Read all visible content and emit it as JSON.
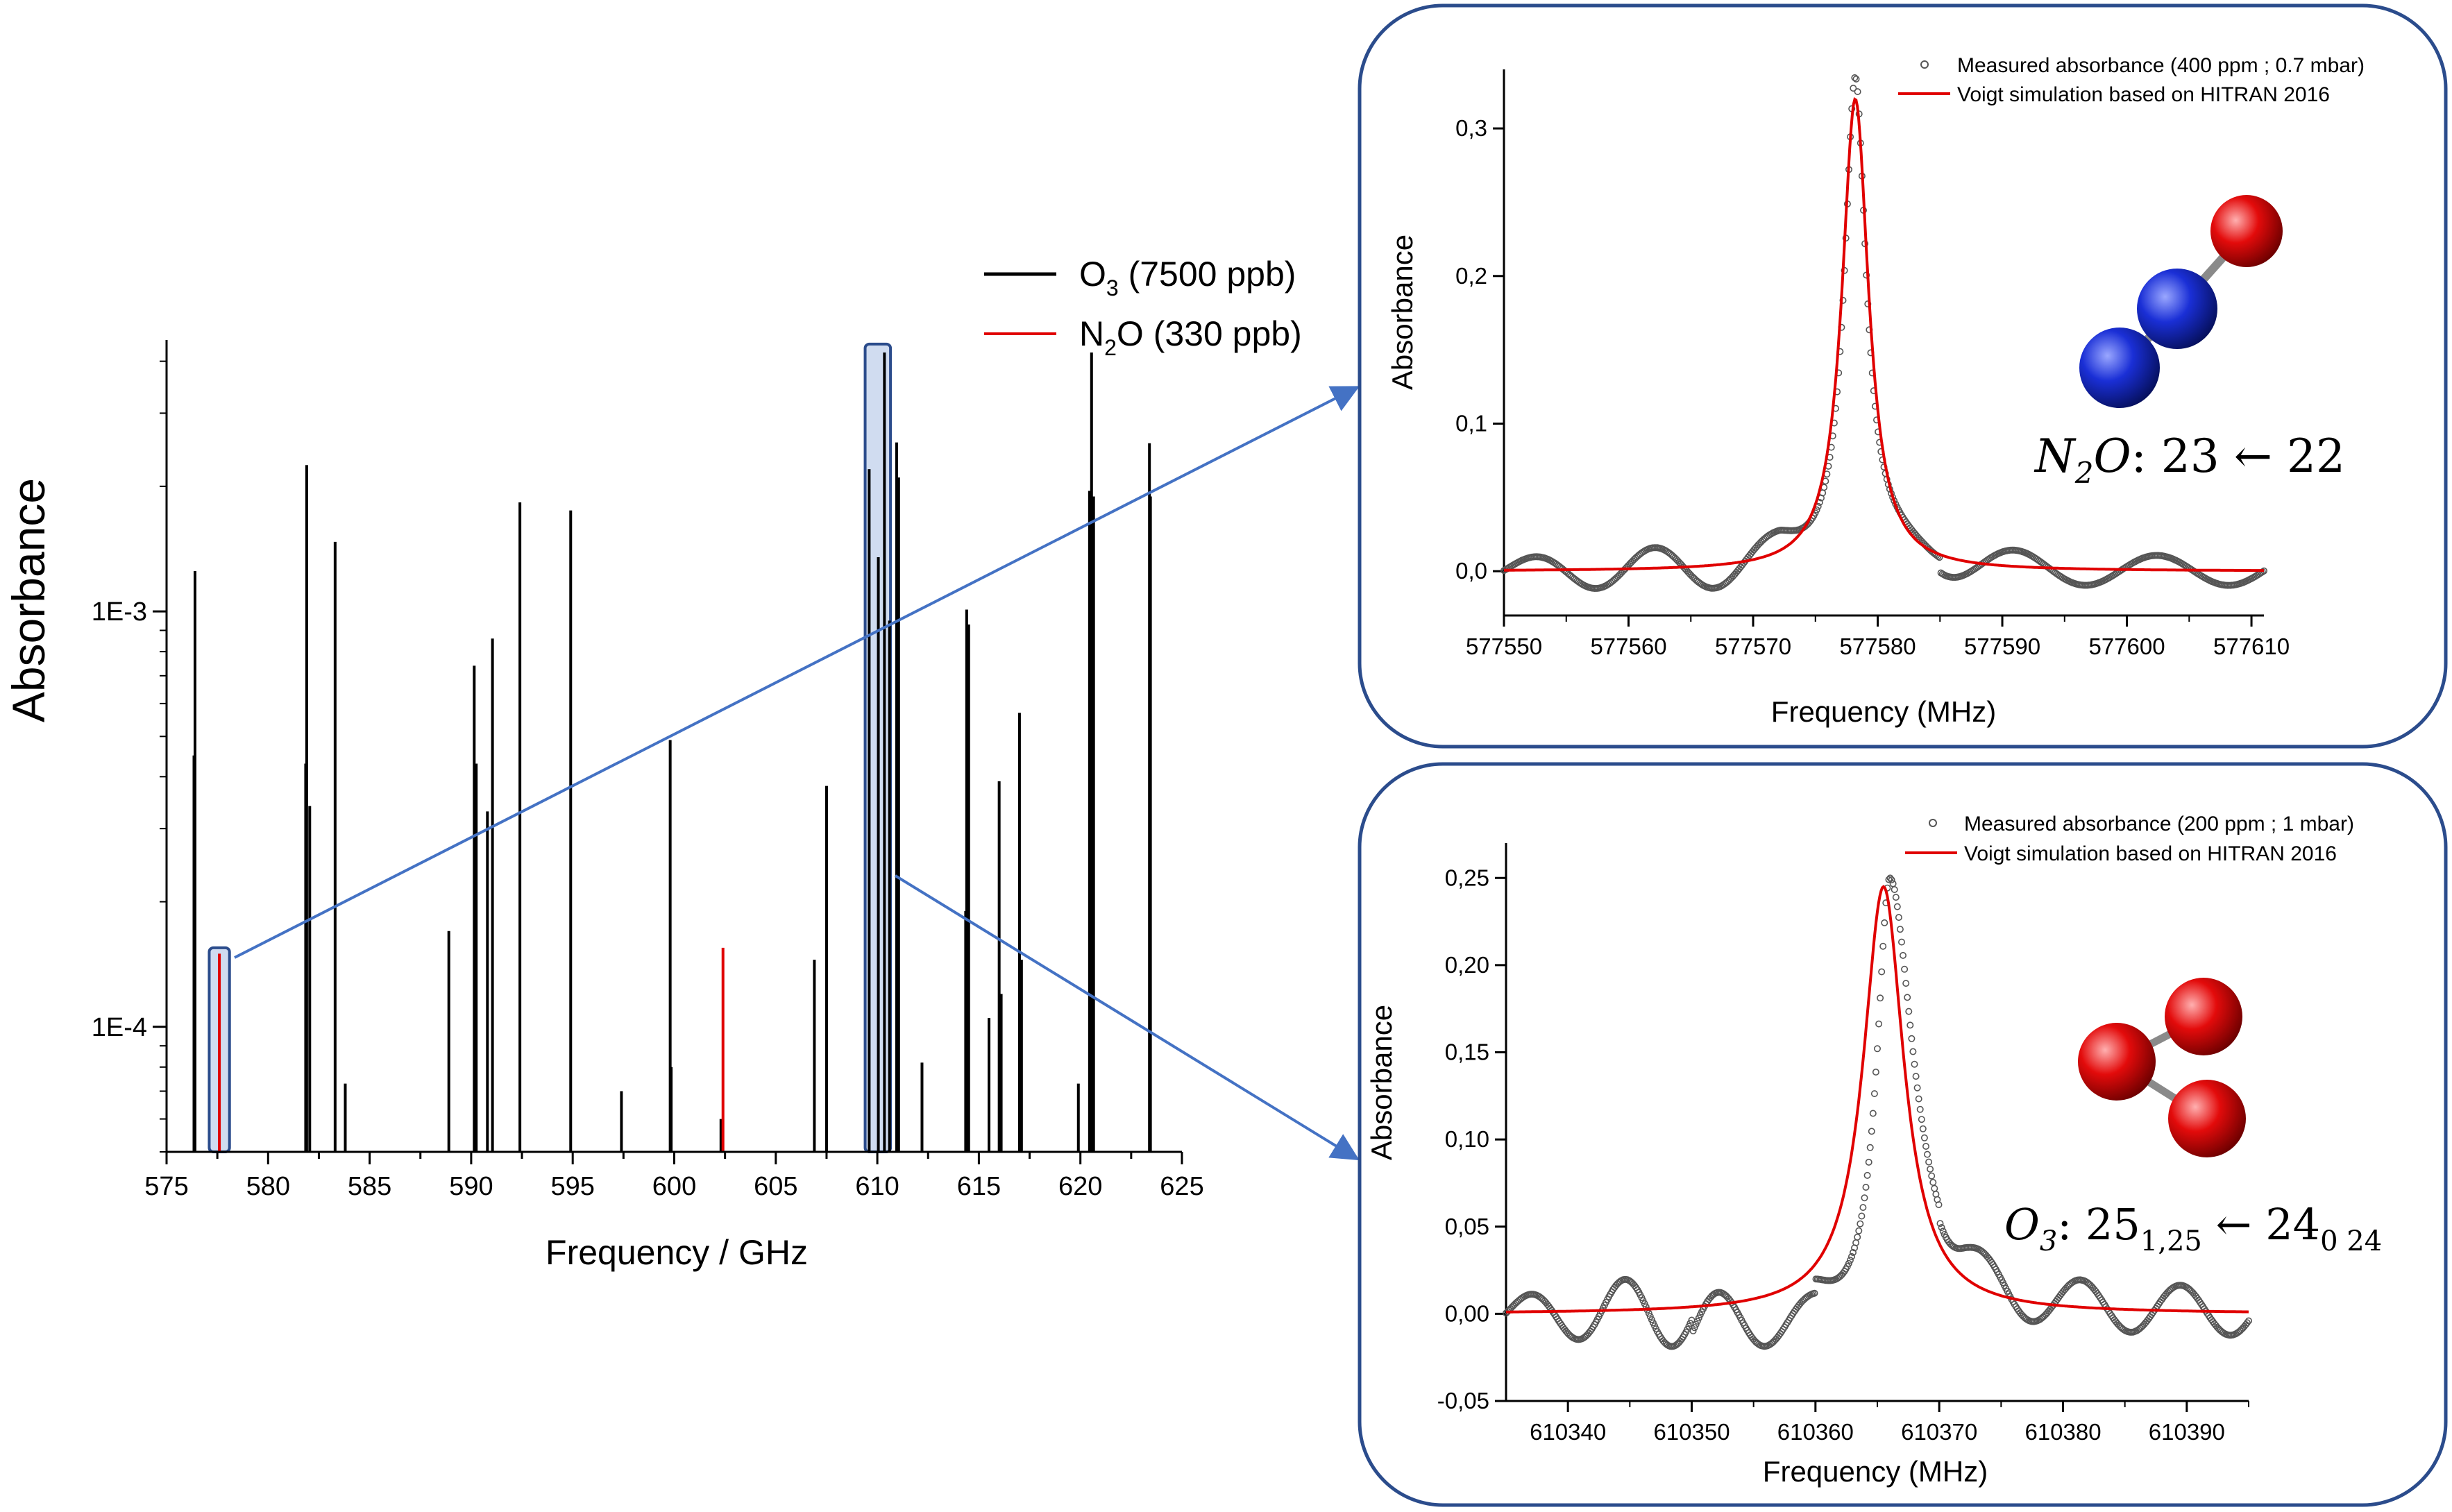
{
  "colors": {
    "o3": "#000000",
    "n2o": "#e00000",
    "measured": "#555555",
    "voigt": "#e00000",
    "frame": "#2b4c8c",
    "highlight": "#4472c4",
    "nitrogen": "#1a2fd6",
    "oxygen": "#e30b0b"
  },
  "chart_data": [
    {
      "type": "bar",
      "id": "overview",
      "xlabel": "Frequency / GHz",
      "ylabel": "Absorbance",
      "xlim": [
        575,
        625
      ],
      "ylim": [
        5e-05,
        0.0045
      ],
      "y_scale": "log",
      "x_ticks": [
        "575",
        "580",
        "585",
        "590",
        "595",
        "600",
        "605",
        "610",
        "615",
        "620",
        "625"
      ],
      "y_ticks": [
        {
          "value": 0.001,
          "label": "1E-3"
        },
        {
          "value": 0.0001,
          "label": "1E-4"
        }
      ],
      "legend": [
        {
          "label_main": "O",
          "label_sub": "3",
          "label_rest": " (7500 ppb)"
        },
        {
          "label_main": "N",
          "label_sub": "2",
          "label_rest": "O (330 ppb)"
        }
      ],
      "legend_placement": "top-center",
      "series": [
        {
          "name": "O3",
          "lines": [
            {
              "x": 576.4,
              "y": 0.00125
            },
            {
              "x": 576.35,
              "y": 0.00045
            },
            {
              "x": 581.9,
              "y": 0.00225
            },
            {
              "x": 581.85,
              "y": 0.00043
            },
            {
              "x": 582.05,
              "y": 0.00034
            },
            {
              "x": 583.3,
              "y": 0.00147
            },
            {
              "x": 583.8,
              "y": 7.3e-05
            },
            {
              "x": 588.9,
              "y": 0.00017
            },
            {
              "x": 590.15,
              "y": 0.00074
            },
            {
              "x": 590.25,
              "y": 0.00043
            },
            {
              "x": 590.8,
              "y": 0.00033
            },
            {
              "x": 591.05,
              "y": 0.00086
            },
            {
              "x": 592.4,
              "y": 0.00183
            },
            {
              "x": 594.9,
              "y": 0.00175
            },
            {
              "x": 597.4,
              "y": 7e-05
            },
            {
              "x": 599.8,
              "y": 0.00049
            },
            {
              "x": 599.85,
              "y": 8e-05
            },
            {
              "x": 602.3,
              "y": 6e-05
            },
            {
              "x": 606.9,
              "y": 0.000145
            },
            {
              "x": 607.5,
              "y": 0.00038
            },
            {
              "x": 609.6,
              "y": 0.0022
            },
            {
              "x": 610.05,
              "y": 0.00135
            },
            {
              "x": 610.35,
              "y": 0.0042
            },
            {
              "x": 610.6,
              "y": 0.00095
            },
            {
              "x": 610.95,
              "y": 0.00255
            },
            {
              "x": 611.05,
              "y": 0.0021
            },
            {
              "x": 612.2,
              "y": 8.2e-05
            },
            {
              "x": 614.4,
              "y": 0.00101
            },
            {
              "x": 614.5,
              "y": 0.00093
            },
            {
              "x": 614.35,
              "y": 0.00019
            },
            {
              "x": 615.5,
              "y": 0.000105
            },
            {
              "x": 616.0,
              "y": 0.00039
            },
            {
              "x": 616.1,
              "y": 0.00012
            },
            {
              "x": 617.0,
              "y": 0.00057
            },
            {
              "x": 617.1,
              "y": 0.000145
            },
            {
              "x": 619.9,
              "y": 7.3e-05
            },
            {
              "x": 620.45,
              "y": 0.00195
            },
            {
              "x": 620.55,
              "y": 0.0042
            },
            {
              "x": 620.65,
              "y": 0.00189
            },
            {
              "x": 623.4,
              "y": 0.00254
            },
            {
              "x": 623.45,
              "y": 0.00189
            }
          ]
        },
        {
          "name": "N2O",
          "lines": [
            {
              "x": 577.6,
              "y": 0.00015
            },
            {
              "x": 602.4,
              "y": 0.000155
            }
          ]
        }
      ],
      "highlights": [
        {
          "x0": 577.1,
          "x1": 578.1,
          "y0": 5e-05,
          "y1": 0.000155
        },
        {
          "x0": 609.4,
          "x1": 610.65,
          "y0": 5e-05,
          "y1": 0.0044
        }
      ]
    },
    {
      "type": "scatter",
      "id": "n2o-zoom",
      "xlabel": "Frequency (MHz)",
      "ylabel": "Absorbance",
      "xlim": [
        577550,
        577611
      ],
      "ylim": [
        -0.03,
        0.34
      ],
      "x_ticks": [
        "577550",
        "577560",
        "577570",
        "577580",
        "577590",
        "577600",
        "577610"
      ],
      "y_ticks": [
        "0,0",
        "0,1",
        "0,2",
        "0,3"
      ],
      "legend": [
        "Measured absorbance (400 ppm ; 0.7 mbar)",
        "Voigt simulation based on HITRAN 2016"
      ],
      "legend_placement": "top-right",
      "peak_center": 577578.2,
      "peak_height": 0.32,
      "peak_halfwidth": 1.3,
      "transition_label": {
        "molecule_main": "N",
        "molecule_sub": "2",
        "molecule_rest": "O",
        "quanta": ": 23 ← 22"
      }
    },
    {
      "type": "scatter",
      "id": "o3-zoom",
      "xlabel": "Frequency (MHz)",
      "ylabel": "Absorbance",
      "xlim": [
        610335,
        610395
      ],
      "ylim": [
        -0.05,
        0.27
      ],
      "x_ticks": [
        "610340",
        "610350",
        "610360",
        "610370",
        "610380",
        "610390"
      ],
      "y_ticks": [
        "-0,05",
        "0,00",
        "0,05",
        "0,10",
        "0,15",
        "0,20",
        "0,25"
      ],
      "legend": [
        "Measured absorbance (200 ppm ; 1 mbar)",
        "Voigt simulation based on HITRAN 2016"
      ],
      "legend_placement": "top-right",
      "peak_center": 610365.5,
      "peak_height": 0.245,
      "peak_halfwidth": 2.0,
      "transition_label": {
        "molecule_main": "O",
        "molecule_sub": "3",
        "quanta_a": ": 25",
        "sub_a": "1,25",
        "quanta_b": " ← 24",
        "sub_b": "0 24"
      }
    }
  ]
}
